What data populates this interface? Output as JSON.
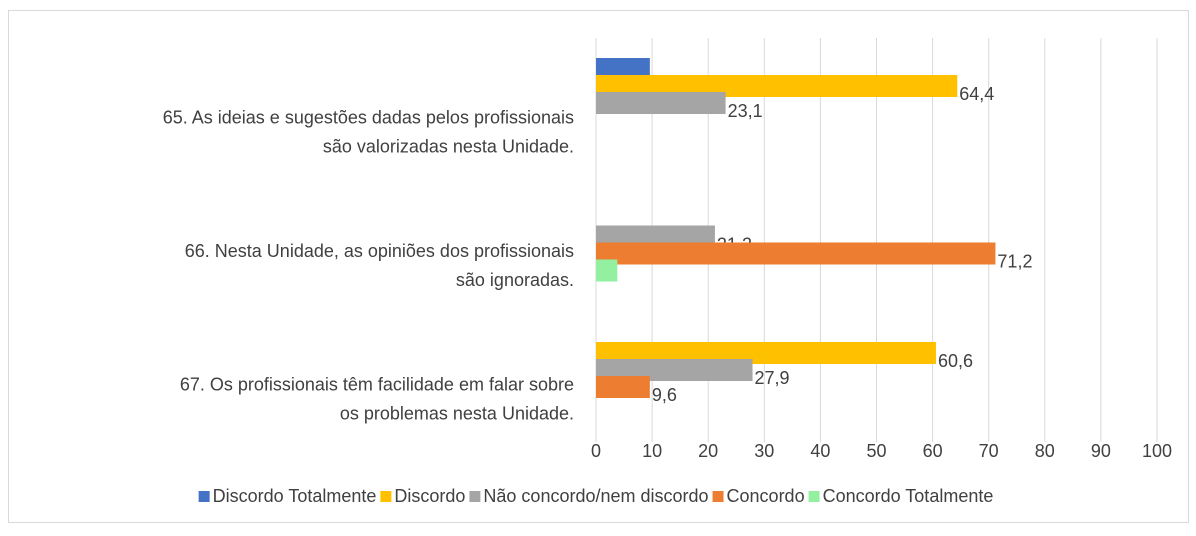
{
  "chart_data": {
    "type": "bar",
    "orientation": "horizontal",
    "categories": [
      [
        "65. As ideias e sugestões dadas pelos profissionais",
        "são valorizadas nesta Unidade."
      ],
      [
        "66. Nesta Unidade, as opiniões dos profissionais",
        "são ignoradas."
      ],
      [
        "67. Os profissionais têm facilidade em falar sobre",
        "os problemas nesta Unidade."
      ]
    ],
    "series": [
      {
        "name": "Discordo Totalmente",
        "color": "#4472c4",
        "values": [
          9.6,
          null,
          null
        ],
        "value_labels": [
          null,
          null,
          null
        ]
      },
      {
        "name": "Discordo",
        "color": "#ffc000",
        "values": [
          64.4,
          null,
          60.6
        ],
        "value_labels": [
          "64,4",
          null,
          "60,6"
        ]
      },
      {
        "name": "Não concordo/nem discordo",
        "color": "#a5a5a5",
        "values": [
          23.1,
          21.2,
          27.9
        ],
        "value_labels": [
          "23,1",
          "21,2",
          "27,9"
        ]
      },
      {
        "name": "Concordo",
        "color": "#ed7d31",
        "values": [
          null,
          71.2,
          9.6
        ],
        "value_labels": [
          null,
          "71,2",
          "9,6"
        ]
      },
      {
        "name": "Concordo Totalmente",
        "color": "#92f0a0",
        "values": [
          null,
          3.8,
          null
        ],
        "value_labels": [
          null,
          null,
          null
        ]
      }
    ],
    "xlim": [
      0,
      100
    ],
    "xticks": [
      0,
      10,
      20,
      30,
      40,
      50,
      60,
      70,
      80,
      90,
      100
    ],
    "grid": true,
    "legend": "bottom"
  }
}
